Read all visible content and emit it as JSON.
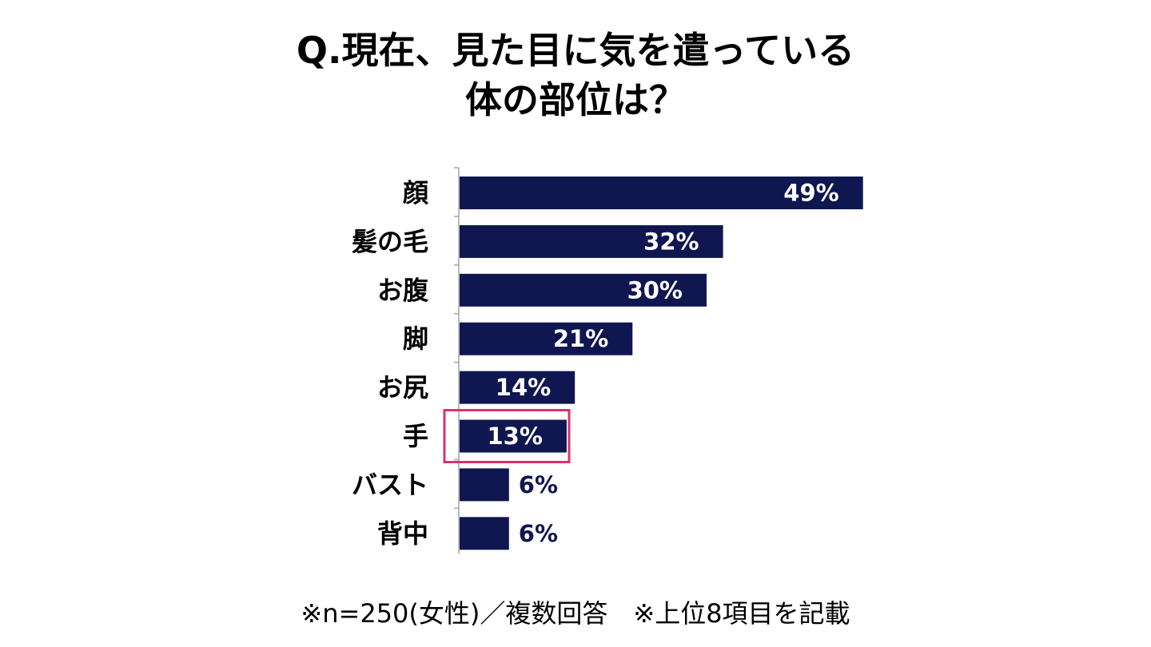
{
  "title_lines": [
    "Q.現在、見た目に気を遣っている",
    "体の部位は？"
  ],
  "chart_data": {
    "type": "bar",
    "orientation": "horizontal",
    "categories": [
      "顔",
      "髪の毛",
      "お腹",
      "脚",
      "お尻",
      "手",
      "バスト",
      "背中"
    ],
    "values": [
      49,
      32,
      30,
      21,
      14,
      13,
      6,
      6
    ],
    "value_labels": [
      "49%",
      "32%",
      "30%",
      "21%",
      "14%",
      "13%",
      "6%",
      "6%"
    ],
    "unit": "%",
    "highlighted_category": "手",
    "xlim": [
      0,
      100
    ],
    "grid": false,
    "legend": "none"
  },
  "colors": {
    "bar": "#0f1650",
    "label_inside": "#ffffff",
    "label_outside": "#0f1650",
    "highlight": "#d6336c",
    "axis": "#a6a6a6",
    "text": "#000000"
  },
  "footnote": "※n=250(女性)／複数回答　※上位8項目を記載"
}
